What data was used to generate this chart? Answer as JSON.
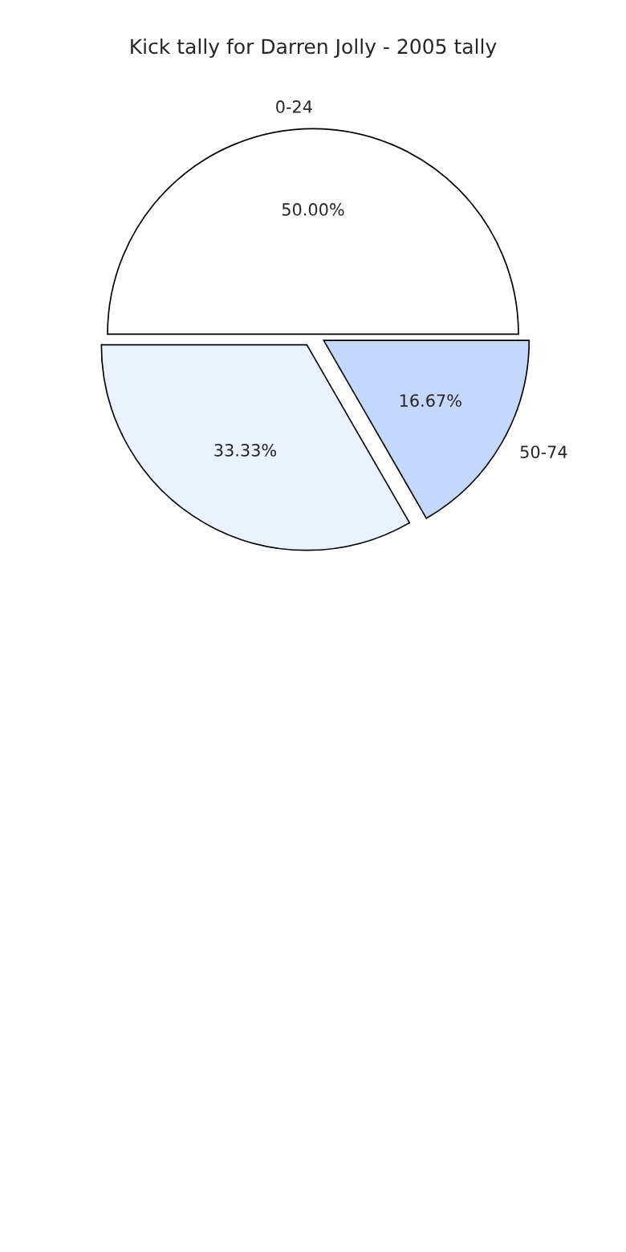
{
  "chart_data": {
    "type": "pie",
    "title": "Kick tally for Darren Jolly - 2005 tally",
    "categories": [
      "0-24",
      null,
      "50-74"
    ],
    "values": [
      50,
      33.33,
      16.67
    ],
    "value_labels": [
      "50.00%",
      "33.33%",
      "16.67%"
    ],
    "colors": [
      "#ffffff",
      "#eaf1ff",
      "#c4d8fe"
    ]
  }
}
